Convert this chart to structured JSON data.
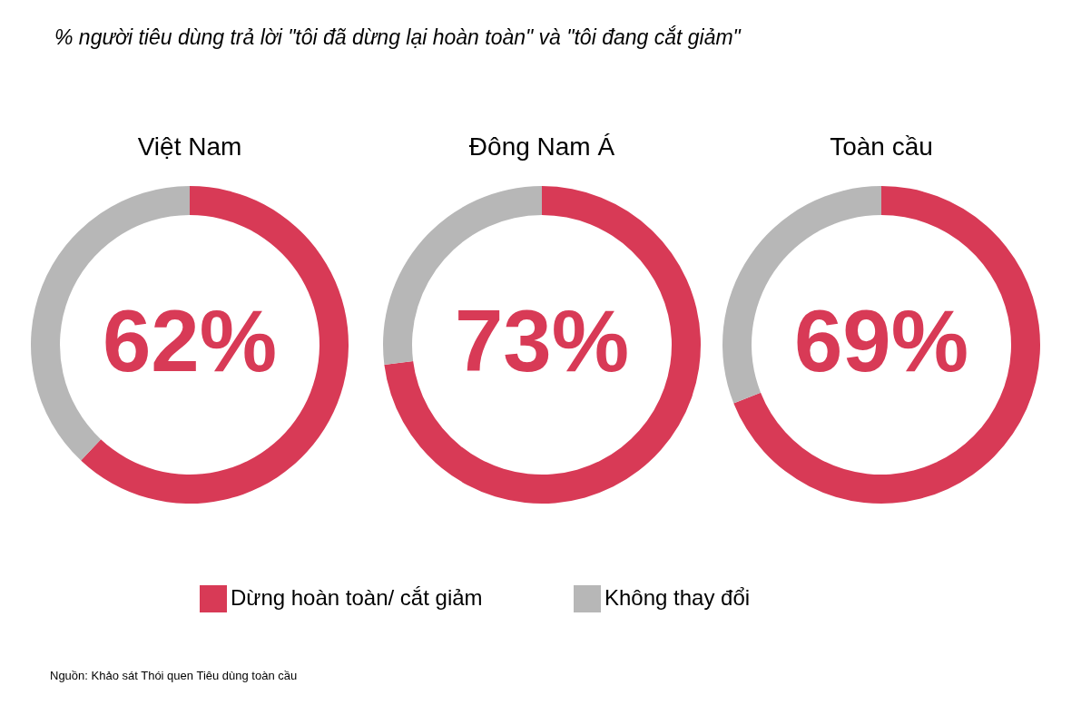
{
  "chart_data": [
    {
      "type": "donut",
      "title": "Việt Nam",
      "categories": [
        "Dừng hoàn toàn/ cắt giảm",
        "Không thay đổi"
      ],
      "values": [
        62,
        38
      ],
      "colors": [
        "#d83a56",
        "#b7b7b7"
      ],
      "value_labels": [
        "62%",
        null
      ],
      "legend": "bottom",
      "annotations": [
        "% người tiêu dùng trả lời \"tôi đã dừng lại hoàn toàn\" và \"tôi đang cắt giảm\"",
        "Nguồn: Khảo sát  Thói quen Tiêu dùng toàn cầu"
      ]
    },
    {
      "type": "donut",
      "title": "Đông Nam Á",
      "categories": [
        null,
        null
      ],
      "values": [
        73,
        27
      ],
      "colors": [
        "#d83a56",
        "#b7b7b7"
      ],
      "value_labels": [
        "73%",
        null
      ]
    },
    {
      "type": "donut",
      "title": "Toàn cầu",
      "categories": [
        null,
        null
      ],
      "values": [
        69,
        31
      ],
      "colors": [
        "#d83a56",
        "#b7b7b7"
      ],
      "value_labels": [
        "69%",
        null
      ]
    }
  ]
}
